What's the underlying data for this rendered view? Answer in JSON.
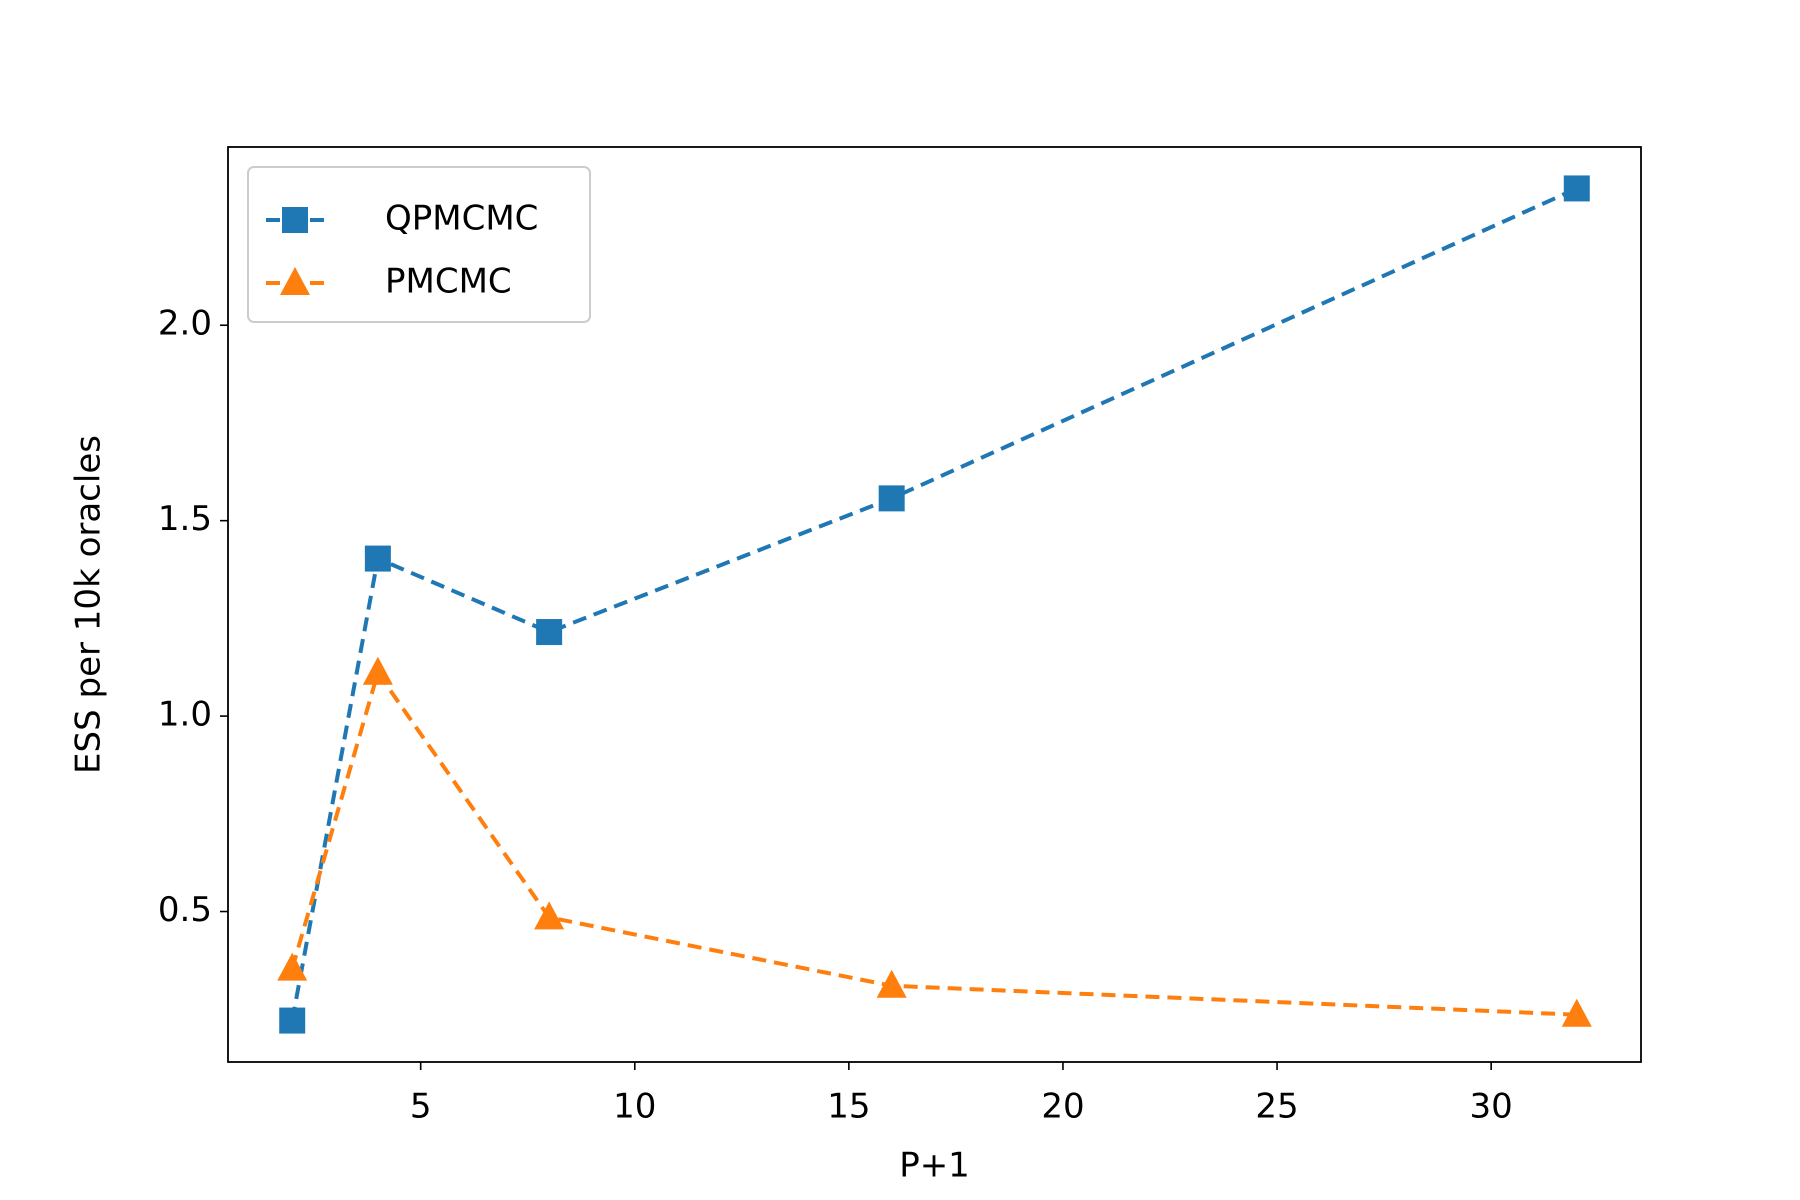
{
  "chart_data": {
    "type": "line",
    "x_label": "P+1",
    "y_label": "ESS per 10k oracles",
    "x": [
      2,
      4,
      8,
      16,
      32
    ],
    "series": [
      {
        "name": "QPMCMC",
        "color": "#1f77b4",
        "marker": "square",
        "values": [
          0.221,
          1.403,
          1.215,
          1.557,
          2.35
        ]
      },
      {
        "name": "PMCMC",
        "color": "#ff7f0e",
        "marker": "triangle",
        "values": [
          0.354,
          1.111,
          0.485,
          0.31,
          0.236
        ]
      }
    ],
    "xlim": [
      0.5,
      33.5
    ],
    "xticks": [
      5,
      10,
      15,
      20,
      25,
      30
    ],
    "ylim": [
      0.115,
      2.456
    ],
    "yticks": [
      0.5,
      1.0,
      1.5,
      2.0
    ],
    "line_style": "dashed",
    "grid": false,
    "legend": "upper left"
  }
}
